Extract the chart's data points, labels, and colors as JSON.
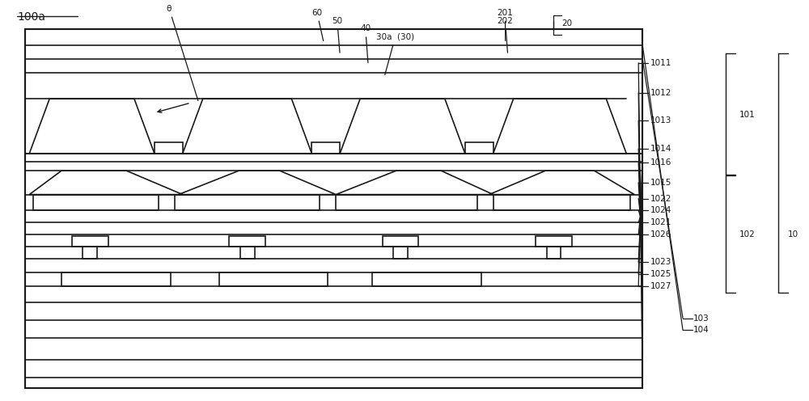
{
  "fig_width": 10.0,
  "fig_height": 4.96,
  "bg_color": "#ffffff",
  "line_color": "#1a1a1a",
  "lw": 1.2,
  "title": "100a",
  "fs": 8.5,
  "fs_small": 7.5
}
